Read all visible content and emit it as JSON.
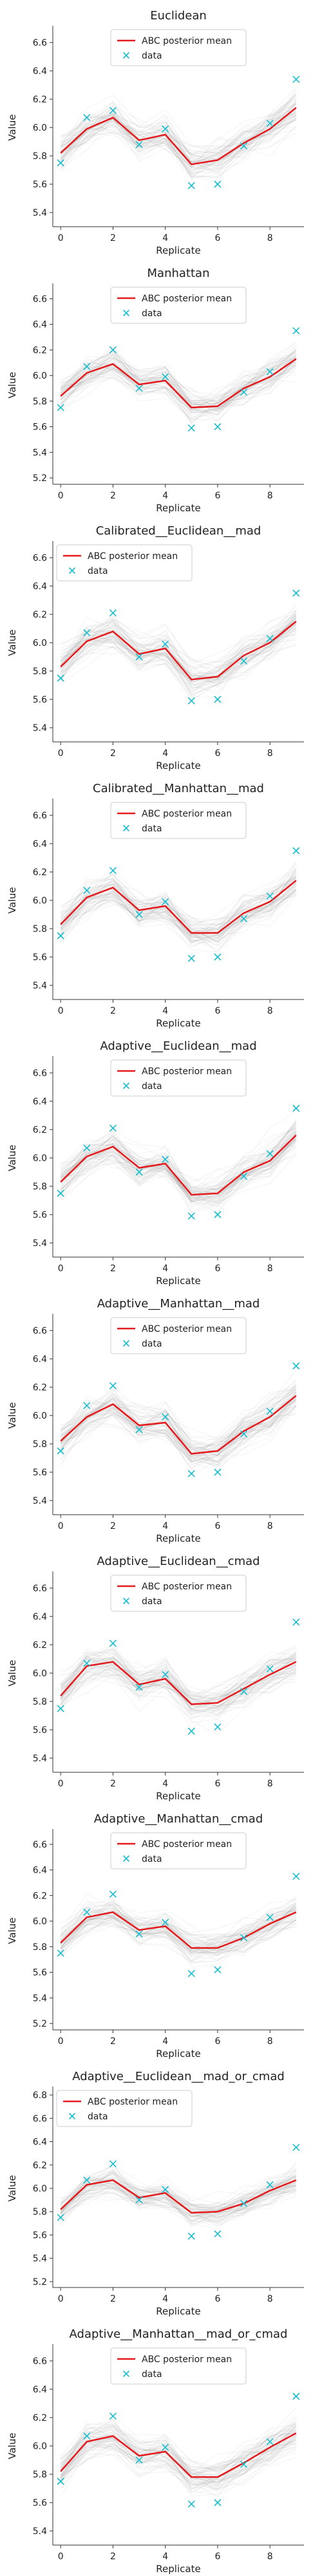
{
  "chart_data": [
    {
      "type": "line",
      "title": "Euclidean",
      "xlabel": "Replicate",
      "ylabel": "Value",
      "x": [
        0,
        1,
        2,
        3,
        4,
        5,
        6,
        7,
        8,
        9
      ],
      "xticks": [
        "0",
        "2",
        "4",
        "6",
        "8"
      ],
      "ylim": [
        5.3,
        6.7
      ],
      "yticks": [
        "5.4",
        "5.6",
        "5.8",
        "6.0",
        "6.2",
        "6.4",
        "6.6"
      ],
      "legend_position": "top-center",
      "series": [
        {
          "name": "ABC posterior mean",
          "kind": "line",
          "color": "#e41a1c",
          "values": [
            5.82,
            5.99,
            6.07,
            5.91,
            5.95,
            5.74,
            5.77,
            5.89,
            5.99,
            6.14
          ]
        },
        {
          "name": "data",
          "kind": "marker",
          "marker": "x",
          "color": "#17becf",
          "values": [
            5.75,
            6.07,
            6.12,
            5.88,
            5.99,
            5.59,
            5.6,
            5.87,
            6.03,
            6.34
          ]
        }
      ]
    },
    {
      "type": "line",
      "title": "Manhattan",
      "xlabel": "Replicate",
      "ylabel": "Value",
      "x": [
        0,
        1,
        2,
        3,
        4,
        5,
        6,
        7,
        8,
        9
      ],
      "xticks": [
        "0",
        "2",
        "4",
        "6",
        "8"
      ],
      "ylim": [
        5.15,
        6.7
      ],
      "yticks": [
        "5.2",
        "5.4",
        "5.6",
        "5.8",
        "6.0",
        "6.2",
        "6.4",
        "6.6"
      ],
      "legend_position": "top-center",
      "series": [
        {
          "name": "ABC posterior mean",
          "kind": "line",
          "color": "#e41a1c",
          "values": [
            5.84,
            6.02,
            6.09,
            5.93,
            5.96,
            5.75,
            5.76,
            5.9,
            5.99,
            6.13
          ]
        },
        {
          "name": "data",
          "kind": "marker",
          "marker": "x",
          "color": "#17becf",
          "values": [
            5.75,
            6.07,
            6.2,
            5.9,
            5.99,
            5.59,
            5.6,
            5.87,
            6.03,
            6.35
          ]
        }
      ]
    },
    {
      "type": "line",
      "title": "Calibrated__Euclidean__mad",
      "xlabel": "Replicate",
      "ylabel": "Value",
      "x": [
        0,
        1,
        2,
        3,
        4,
        5,
        6,
        7,
        8,
        9
      ],
      "xticks": [
        "0",
        "2",
        "4",
        "6",
        "8"
      ],
      "ylim": [
        5.3,
        6.7
      ],
      "yticks": [
        "5.4",
        "5.6",
        "5.8",
        "6.0",
        "6.2",
        "6.4",
        "6.6"
      ],
      "legend_position": "top-left",
      "series": [
        {
          "name": "ABC posterior mean",
          "kind": "line",
          "color": "#e41a1c",
          "values": [
            5.83,
            6.01,
            6.08,
            5.92,
            5.96,
            5.74,
            5.76,
            5.91,
            6.0,
            6.15
          ]
        },
        {
          "name": "data",
          "kind": "marker",
          "marker": "x",
          "color": "#17becf",
          "values": [
            5.75,
            6.07,
            6.21,
            5.9,
            5.99,
            5.59,
            5.6,
            5.87,
            6.03,
            6.35
          ]
        }
      ]
    },
    {
      "type": "line",
      "title": "Calibrated__Manhattan__mad",
      "xlabel": "Replicate",
      "ylabel": "Value",
      "x": [
        0,
        1,
        2,
        3,
        4,
        5,
        6,
        7,
        8,
        9
      ],
      "xticks": [
        "0",
        "2",
        "4",
        "6",
        "8"
      ],
      "ylim": [
        5.3,
        6.7
      ],
      "yticks": [
        "5.4",
        "5.6",
        "5.8",
        "6.0",
        "6.2",
        "6.4",
        "6.6"
      ],
      "legend_position": "top-center",
      "series": [
        {
          "name": "ABC posterior mean",
          "kind": "line",
          "color": "#e41a1c",
          "values": [
            5.83,
            6.02,
            6.09,
            5.93,
            5.96,
            5.77,
            5.77,
            5.91,
            5.99,
            6.14
          ]
        },
        {
          "name": "data",
          "kind": "marker",
          "marker": "x",
          "color": "#17becf",
          "values": [
            5.75,
            6.07,
            6.21,
            5.9,
            5.99,
            5.59,
            5.6,
            5.87,
            6.03,
            6.35
          ]
        }
      ]
    },
    {
      "type": "line",
      "title": "Adaptive__Euclidean__mad",
      "xlabel": "Replicate",
      "ylabel": "Value",
      "x": [
        0,
        1,
        2,
        3,
        4,
        5,
        6,
        7,
        8,
        9
      ],
      "xticks": [
        "0",
        "2",
        "4",
        "6",
        "8"
      ],
      "ylim": [
        5.3,
        6.7
      ],
      "yticks": [
        "5.4",
        "5.6",
        "5.8",
        "6.0",
        "6.2",
        "6.4",
        "6.6"
      ],
      "legend_position": "top-center",
      "series": [
        {
          "name": "ABC posterior mean",
          "kind": "line",
          "color": "#e41a1c",
          "values": [
            5.83,
            6.01,
            6.08,
            5.93,
            5.96,
            5.74,
            5.75,
            5.9,
            5.98,
            6.16
          ]
        },
        {
          "name": "data",
          "kind": "marker",
          "marker": "x",
          "color": "#17becf",
          "values": [
            5.75,
            6.07,
            6.21,
            5.9,
            5.99,
            5.59,
            5.6,
            5.87,
            6.03,
            6.35
          ]
        }
      ]
    },
    {
      "type": "line",
      "title": "Adaptive__Manhattan__mad",
      "xlabel": "Replicate",
      "ylabel": "Value",
      "x": [
        0,
        1,
        2,
        3,
        4,
        5,
        6,
        7,
        8,
        9
      ],
      "xticks": [
        "0",
        "2",
        "4",
        "6",
        "8"
      ],
      "ylim": [
        5.3,
        6.7
      ],
      "yticks": [
        "5.4",
        "5.6",
        "5.8",
        "6.0",
        "6.2",
        "6.4",
        "6.6"
      ],
      "legend_position": "top-center",
      "series": [
        {
          "name": "ABC posterior mean",
          "kind": "line",
          "color": "#e41a1c",
          "values": [
            5.82,
            5.99,
            6.08,
            5.93,
            5.95,
            5.73,
            5.75,
            5.89,
            5.99,
            6.14
          ]
        },
        {
          "name": "data",
          "kind": "marker",
          "marker": "x",
          "color": "#17becf",
          "values": [
            5.75,
            6.07,
            6.21,
            5.9,
            5.99,
            5.59,
            5.6,
            5.87,
            6.03,
            6.35
          ]
        }
      ]
    },
    {
      "type": "line",
      "title": "Adaptive__Euclidean__cmad",
      "xlabel": "Replicate",
      "ylabel": "Value",
      "x": [
        0,
        1,
        2,
        3,
        4,
        5,
        6,
        7,
        8,
        9
      ],
      "xticks": [
        "0",
        "2",
        "4",
        "6",
        "8"
      ],
      "ylim": [
        5.3,
        6.7
      ],
      "yticks": [
        "5.4",
        "5.6",
        "5.8",
        "6.0",
        "6.2",
        "6.4",
        "6.6"
      ],
      "legend_position": "top-center",
      "series": [
        {
          "name": "ABC posterior mean",
          "kind": "line",
          "color": "#e41a1c",
          "values": [
            5.84,
            6.05,
            6.08,
            5.92,
            5.96,
            5.78,
            5.79,
            5.89,
            5.99,
            6.08
          ]
        },
        {
          "name": "data",
          "kind": "marker",
          "marker": "x",
          "color": "#17becf",
          "values": [
            5.75,
            6.07,
            6.21,
            5.9,
            5.99,
            5.59,
            5.62,
            5.87,
            6.03,
            6.36
          ]
        }
      ]
    },
    {
      "type": "line",
      "title": "Adaptive__Manhattan__cmad",
      "xlabel": "Replicate",
      "ylabel": "Value",
      "x": [
        0,
        1,
        2,
        3,
        4,
        5,
        6,
        7,
        8,
        9
      ],
      "xticks": [
        "0",
        "2",
        "4",
        "6",
        "8"
      ],
      "ylim": [
        5.15,
        6.7
      ],
      "yticks": [
        "5.2",
        "5.4",
        "5.6",
        "5.8",
        "6.0",
        "6.2",
        "6.4",
        "6.6"
      ],
      "legend_position": "top-center",
      "series": [
        {
          "name": "ABC posterior mean",
          "kind": "line",
          "color": "#e41a1c",
          "values": [
            5.83,
            6.03,
            6.07,
            5.93,
            5.96,
            5.79,
            5.79,
            5.87,
            5.98,
            6.07
          ]
        },
        {
          "name": "data",
          "kind": "marker",
          "marker": "x",
          "color": "#17becf",
          "values": [
            5.75,
            6.07,
            6.21,
            5.9,
            5.99,
            5.59,
            5.62,
            5.87,
            6.03,
            6.35
          ]
        }
      ]
    },
    {
      "type": "line",
      "title": "Adaptive__Euclidean__mad_or_cmad",
      "xlabel": "Replicate",
      "ylabel": "Value",
      "x": [
        0,
        1,
        2,
        3,
        4,
        5,
        6,
        7,
        8,
        9
      ],
      "xticks": [
        "0",
        "2",
        "4",
        "6",
        "8"
      ],
      "ylim": [
        5.15,
        6.85
      ],
      "yticks": [
        "5.2",
        "5.4",
        "5.6",
        "5.8",
        "6.0",
        "6.2",
        "6.4",
        "6.6",
        "6.8"
      ],
      "legend_position": "top-left",
      "series": [
        {
          "name": "ABC posterior mean",
          "kind": "line",
          "color": "#e41a1c",
          "values": [
            5.82,
            6.03,
            6.07,
            5.92,
            5.96,
            5.79,
            5.8,
            5.87,
            5.98,
            6.07
          ]
        },
        {
          "name": "data",
          "kind": "marker",
          "marker": "x",
          "color": "#17becf",
          "values": [
            5.75,
            6.07,
            6.21,
            5.9,
            5.99,
            5.59,
            5.61,
            5.87,
            6.03,
            6.35
          ]
        }
      ]
    },
    {
      "type": "line",
      "title": "Adaptive__Manhattan__mad_or_cmad",
      "xlabel": "Replicate",
      "ylabel": "Value",
      "x": [
        0,
        1,
        2,
        3,
        4,
        5,
        6,
        7,
        8,
        9
      ],
      "xticks": [
        "0",
        "2",
        "4",
        "6",
        "8"
      ],
      "ylim": [
        5.3,
        6.7
      ],
      "yticks": [
        "5.4",
        "5.6",
        "5.8",
        "6.0",
        "6.2",
        "6.4",
        "6.6"
      ],
      "legend_position": "top-center",
      "series": [
        {
          "name": "ABC posterior mean",
          "kind": "line",
          "color": "#e41a1c",
          "values": [
            5.82,
            6.03,
            6.07,
            5.93,
            5.96,
            5.78,
            5.78,
            5.88,
            5.99,
            6.09
          ]
        },
        {
          "name": "data",
          "kind": "marker",
          "marker": "x",
          "color": "#17becf",
          "values": [
            5.75,
            6.07,
            6.21,
            5.9,
            5.99,
            5.59,
            5.6,
            5.87,
            6.03,
            6.35
          ]
        }
      ]
    }
  ],
  "colors": {
    "posterior_mean": "#e41a1c",
    "data_marker": "#17becf",
    "posterior_samples": "#9a9a9a",
    "axis": "#333333"
  }
}
